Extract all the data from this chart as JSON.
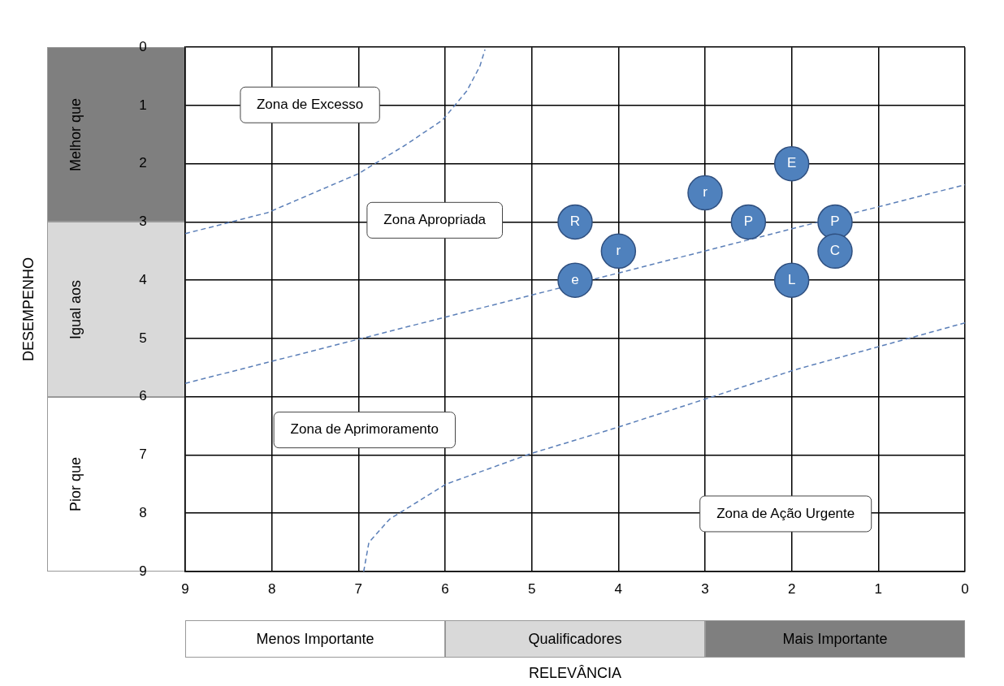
{
  "chart_data": {
    "type": "scatter",
    "xlabel": "RELEVÂNCIA",
    "xlim": [
      9,
      0
    ],
    "xticks": [
      9,
      8,
      7,
      6,
      5,
      4,
      3,
      2,
      1,
      0
    ],
    "ylim": [
      9,
      0
    ],
    "yticks": [
      0,
      1,
      2,
      3,
      4,
      5,
      6,
      7,
      8,
      9
    ],
    "grid": true,
    "legend": false,
    "series": [
      {
        "type": "scatter",
        "color": "#4f81bd",
        "marker": "circle",
        "x": [
          4.5,
          4,
          4.5,
          3,
          2.5,
          2,
          1.5,
          1.5,
          2
        ],
        "values": [
          3,
          3.5,
          4,
          2.5,
          3,
          2,
          3,
          3.5,
          4
        ],
        "value_labels": [
          "R",
          "r",
          "e",
          "r",
          "P",
          "E",
          "P",
          "C",
          "L"
        ]
      },
      {
        "type": "line",
        "color": "#5b7fb8",
        "marker": "none",
        "line_style": "dashed",
        "x": [
          9,
          8.05,
          7,
          6.46,
          6.03,
          5.75,
          5.6,
          5.54
        ],
        "values": [
          3.2,
          2.84,
          2.17,
          1.68,
          1.25,
          0.75,
          0.33,
          0.04
        ]
      },
      {
        "type": "line",
        "color": "#5b7fb8",
        "marker": "none",
        "line_style": "dashed",
        "x": [
          9,
          0
        ],
        "values": [
          5.77,
          2.36
        ]
      },
      {
        "type": "line",
        "color": "#5b7fb8",
        "marker": "none",
        "line_style": "dashed",
        "x": [
          6.94,
          6.88,
          6.64,
          5.99,
          5,
          4.02,
          3,
          1.97,
          0
        ],
        "values": [
          9,
          8.5,
          8.1,
          7.5,
          6.97,
          6.53,
          6.04,
          5.54,
          4.73
        ]
      }
    ],
    "annotations": [
      "Melhor que",
      "Igual aos",
      "Pior que",
      "Menos Importante",
      "Qualificadores",
      "Mais Importante",
      "Zona de Excesso",
      "Zona Apropriada",
      "Zona de Aprimoramento",
      "Zona de Ação Urgente",
      "DESEMPENHO"
    ]
  }
}
